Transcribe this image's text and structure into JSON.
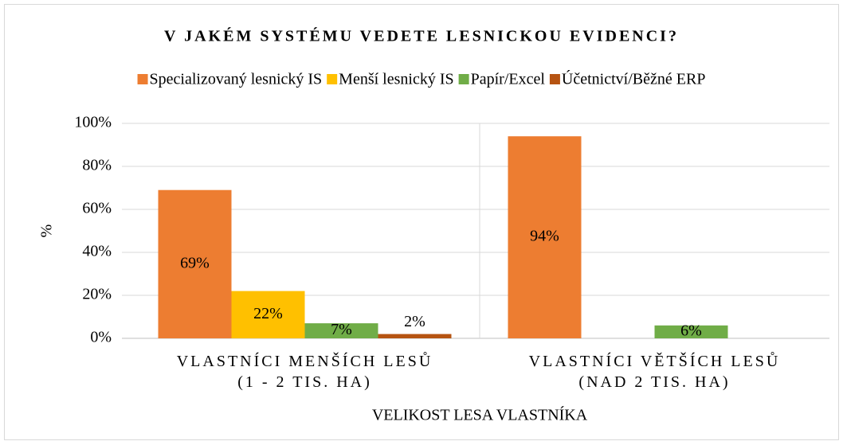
{
  "chart_data": {
    "type": "bar",
    "title": "V JAKÉM SYSTÉMU VEDETE LESNICKOU EVIDENCI?",
    "categories": [
      "VLASTNÍCI MENŠÍCH LESŮ\n(1 - 2 TIS. HA)",
      "VLASTNÍCI VĚTŠÍCH LESŮ\n(NAD 2 TIS. HA)"
    ],
    "series": [
      {
        "name": "Specializovaný lesnický IS",
        "color": "#ed7d31",
        "values": [
          69,
          94
        ],
        "value_labels": [
          "69%",
          "94%"
        ]
      },
      {
        "name": "Menší lesnický IS",
        "color": "#ffc000",
        "values": [
          22,
          null
        ],
        "value_labels": [
          "22%",
          null
        ]
      },
      {
        "name": "Papír/Excel",
        "color": "#70ad47",
        "values": [
          7,
          6
        ],
        "value_labels": [
          "7%",
          "6%"
        ]
      },
      {
        "name": "Účetnictví/Běžné ERP",
        "color": "#b65412",
        "values": [
          2,
          null
        ],
        "value_labels": [
          "2%",
          null
        ]
      }
    ],
    "ylim": [
      0,
      100
    ],
    "yticks": [
      {
        "value": 0,
        "label": "0%"
      },
      {
        "value": 20,
        "label": "20%"
      },
      {
        "value": 40,
        "label": "40%"
      },
      {
        "value": 60,
        "label": "60%"
      },
      {
        "value": 80,
        "label": "80%"
      },
      {
        "value": 100,
        "label": "100%"
      }
    ],
    "ylabel": "%",
    "xlabel": "VELIKOST LESA VLASTNÍKA",
    "grid": true,
    "legend": "top"
  }
}
